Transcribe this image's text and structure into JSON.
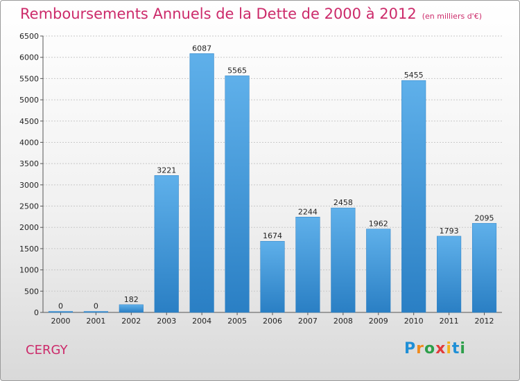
{
  "title": "Remboursements Annuels de la Dette de 2000 à 2012",
  "unit": "(en milliers d'€)",
  "commune": "CERGY",
  "logo": {
    "letters": [
      {
        "ch": "P",
        "color": "#1f8fd6"
      },
      {
        "ch": "r",
        "color": "#f08a1c"
      },
      {
        "ch": "o",
        "color": "#2d9f4a"
      },
      {
        "ch": "x",
        "color": "#e23a3a"
      },
      {
        "ch": "i",
        "color": "#f2b21a"
      },
      {
        "ch": "t",
        "color": "#1f8fd6"
      },
      {
        "ch": "i",
        "color": "#2d9f4a"
      }
    ]
  },
  "colors": {
    "bar_light": "#5fb0ea",
    "bar_dark": "#2a7fc4",
    "title": "#cc2a6a",
    "grid": "#c8c8c8"
  },
  "chart_data": {
    "type": "bar",
    "categories": [
      "2000",
      "2001",
      "2002",
      "2003",
      "2004",
      "2005",
      "2006",
      "2007",
      "2008",
      "2009",
      "2010",
      "2011",
      "2012"
    ],
    "values": [
      0,
      0,
      182,
      3221,
      6087,
      5565,
      1674,
      2244,
      2458,
      1962,
      5455,
      1793,
      2095
    ],
    "ylim": [
      0,
      6500
    ],
    "yticks": [
      0,
      500,
      1000,
      1500,
      2000,
      2500,
      3000,
      3500,
      4000,
      4500,
      5000,
      5500,
      6000,
      6500
    ],
    "grid": true
  }
}
